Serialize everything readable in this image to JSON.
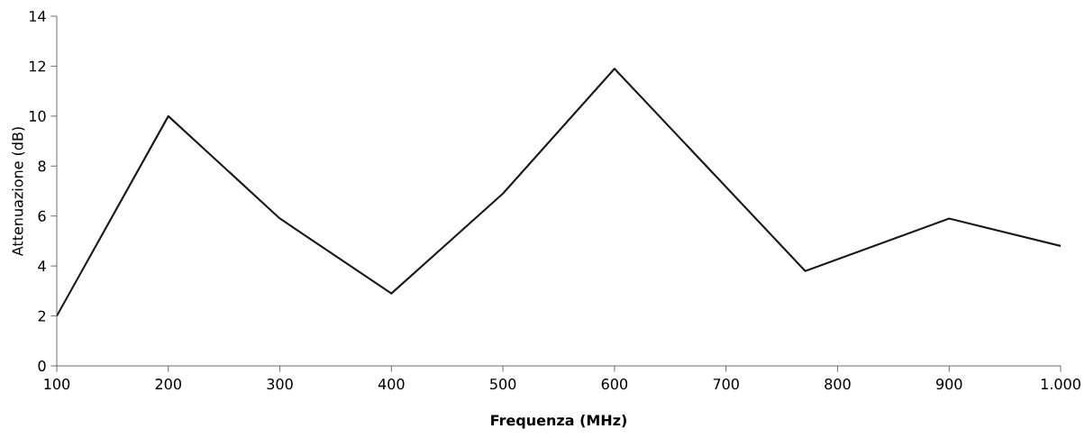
{
  "chart_data": {
    "type": "line",
    "xlabel": "Frequenza (MHz)",
    "ylabel": "Attenuazione (dB)",
    "x": [
      100,
      200,
      300,
      400,
      500,
      600,
      771,
      900,
      1000
    ],
    "series": [
      {
        "color": "#1a1a1a",
        "values": [
          2.0,
          10.0,
          5.9,
          2.9,
          6.9,
          11.9,
          3.8,
          5.9,
          4.8
        ]
      }
    ],
    "xlim": [
      100,
      1000
    ],
    "ylim": [
      0,
      14
    ],
    "xticks": [
      100,
      200,
      300,
      400,
      500,
      600,
      700,
      800,
      900,
      {
        "value": 1000,
        "label": "1.000"
      }
    ],
    "yticks": [
      0,
      2,
      4,
      6,
      8,
      10,
      12,
      14
    ],
    "grid": false,
    "marker": "none",
    "line_style": "solid"
  }
}
